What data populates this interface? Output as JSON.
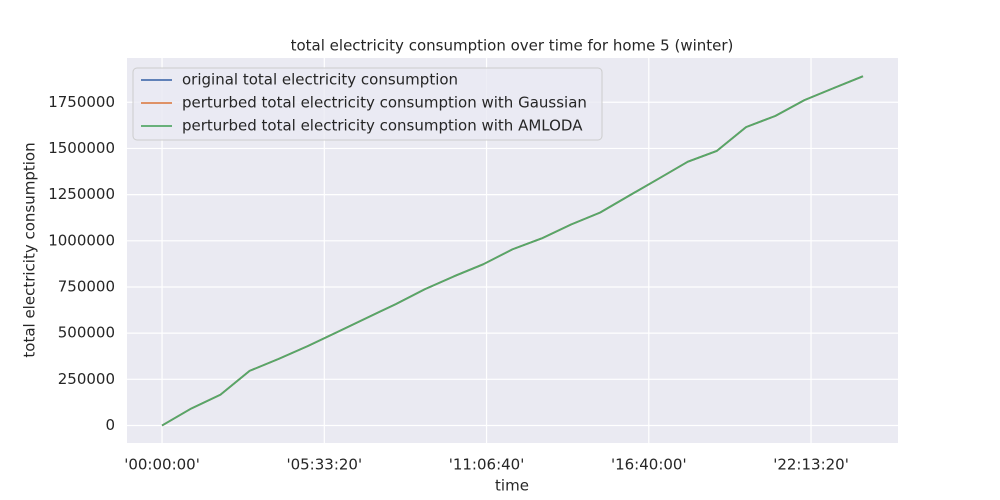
{
  "chart_data": {
    "type": "line",
    "title": "total electricity consumption over time for home 5 (winter)",
    "xlabel": "time",
    "ylabel": "total electricity consumption",
    "x": [
      0,
      3600,
      7200,
      10800,
      14400,
      18000,
      21600,
      25200,
      28800,
      32400,
      36000,
      39600,
      43200,
      46800,
      50400,
      54000,
      57600,
      61200,
      64800,
      68400,
      72000,
      75600,
      79200,
      82800,
      86400
    ],
    "series": [
      {
        "name": "original total electricity consumption",
        "color": "#4c72b0",
        "values": [
          0,
          92000,
          167000,
          296000,
          361000,
          431000,
          506000,
          582000,
          657000,
          738000,
          808000,
          873000,
          954000,
          1013000,
          1088000,
          1153000,
          1245000,
          1336000,
          1428000,
          1487000,
          1616000,
          1676000,
          1762000,
          1827000,
          1891000
        ]
      },
      {
        "name": "perturbed total electricity consumption with Gaussian",
        "color": "#dd8452",
        "values": [
          0,
          92000,
          167000,
          296000,
          361000,
          431000,
          506000,
          582000,
          657000,
          738000,
          808000,
          873000,
          954000,
          1013000,
          1088000,
          1153000,
          1245000,
          1336000,
          1428000,
          1487000,
          1616000,
          1676000,
          1762000,
          1827000,
          1891000
        ]
      },
      {
        "name": "perturbed total electricity consumption with AMLODA",
        "color": "#55a868",
        "values": [
          0,
          92000,
          167000,
          296000,
          361000,
          431000,
          506000,
          582000,
          657000,
          738000,
          808000,
          873000,
          954000,
          1013000,
          1088000,
          1153000,
          1245000,
          1336000,
          1428000,
          1487000,
          1616000,
          1676000,
          1762000,
          1827000,
          1891000
        ]
      }
    ],
    "xlim": [
      -4320,
      90720
    ],
    "xticks": [
      {
        "value": 0,
        "label": "'00:00:00'"
      },
      {
        "value": 20000,
        "label": "'05:33:20'"
      },
      {
        "value": 40000,
        "label": "'11:06:40'"
      },
      {
        "value": 60000,
        "label": "'16:40:00'"
      },
      {
        "value": 80000,
        "label": "'22:13:20'"
      }
    ],
    "ylim": [
      -94750,
      1989750
    ],
    "yticks": [
      0,
      250000,
      500000,
      750000,
      1000000,
      1250000,
      1500000,
      1750000
    ],
    "grid": true,
    "legend": "upper left"
  }
}
